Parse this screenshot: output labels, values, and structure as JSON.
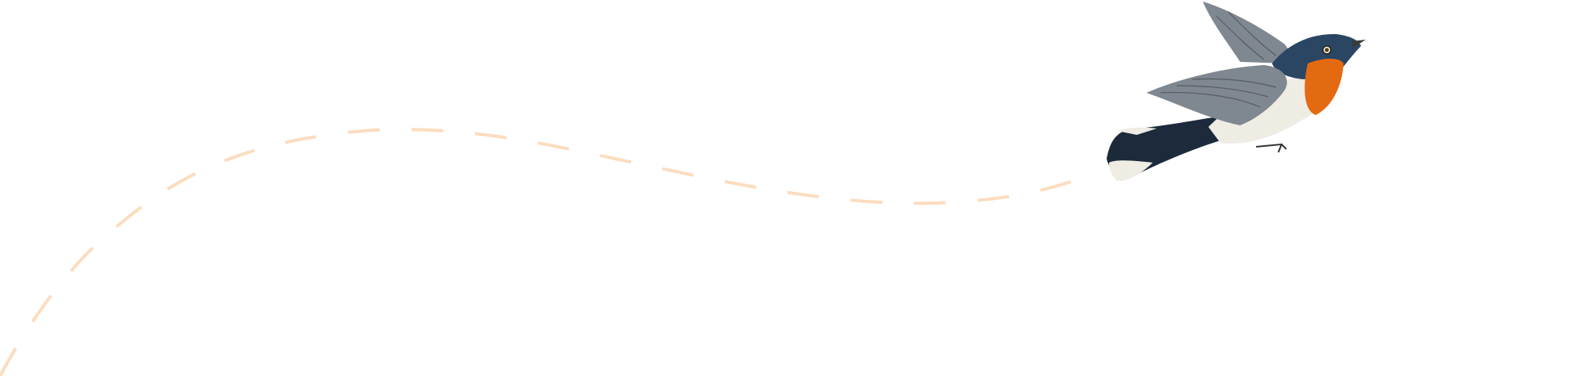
{
  "illustration": {
    "subject": "bird-icon",
    "colors": {
      "path": "#fcdcbf",
      "back": "#2b4663",
      "wing": "#7f8790",
      "throat": "#e46a12",
      "belly": "#efece4",
      "tail": "#1c2a3c",
      "beak": "#3a3a3a"
    }
  }
}
